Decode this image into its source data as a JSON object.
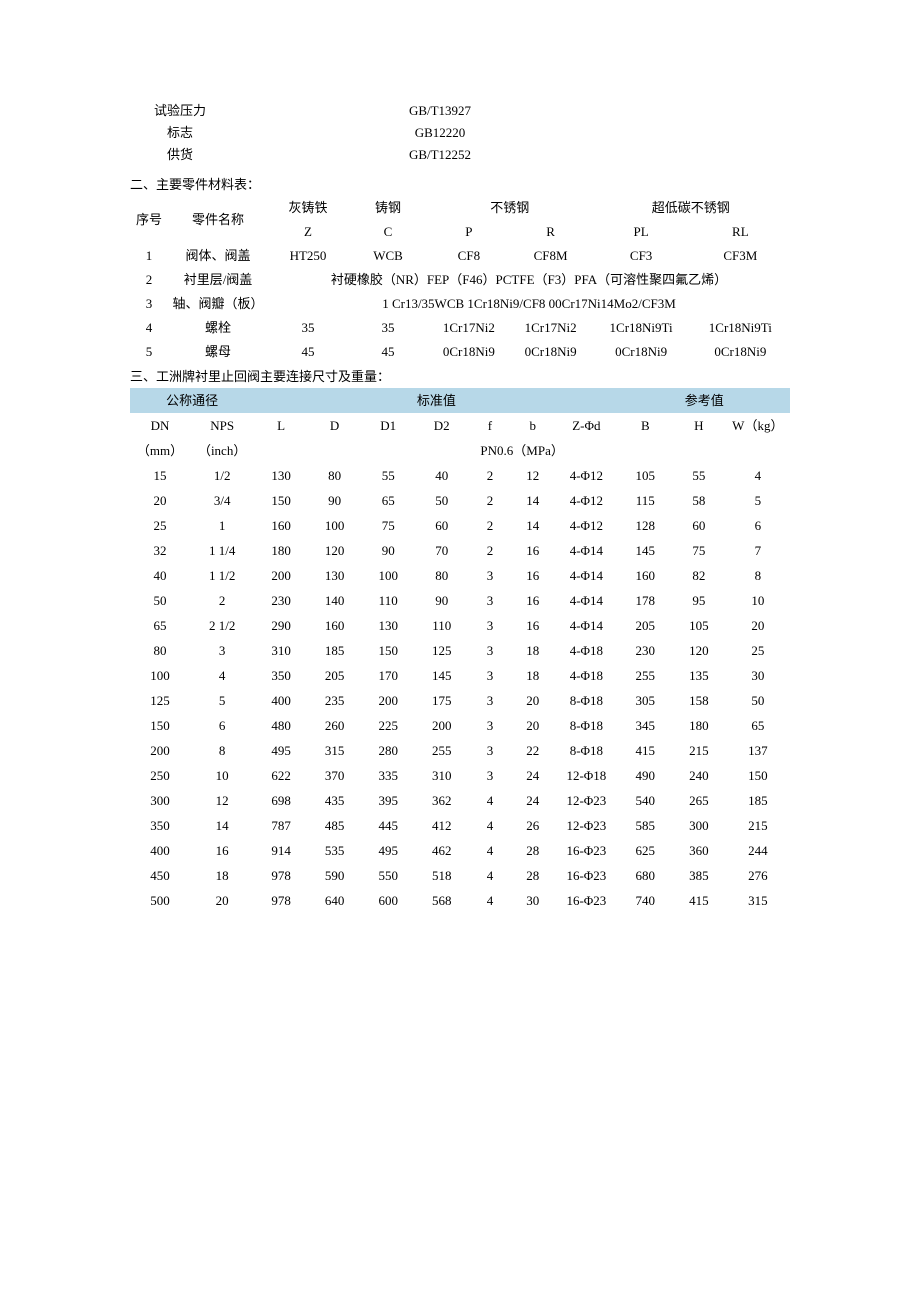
{
  "top_specs": [
    {
      "label": "试验压力",
      "value": "GB/T13927"
    },
    {
      "label": "标志",
      "value": "GB12220"
    },
    {
      "label": "供货",
      "value": "GB/T12252"
    }
  ],
  "section2_title": "二、主要零件材料表：",
  "materials": {
    "header": {
      "idx": "序号",
      "name": "零件名称",
      "grey_iron": "灰铸铁",
      "cast_steel": "铸钢",
      "stainless": "不锈钢",
      "ultra_low_c": "超低碳不锈钢",
      "Z": "Z",
      "C": "C",
      "P": "P",
      "R": "R",
      "PL": "PL",
      "RL": "RL"
    },
    "rows": [
      {
        "idx": "1",
        "name": "阀体、阀盖",
        "Z": "HT250",
        "C": "WCB",
        "P": "CF8",
        "R": "CF8M",
        "PL": "CF3",
        "RL": "CF3M"
      },
      {
        "idx": "2",
        "name": "衬里层/阀盖",
        "span": "衬硬橡胶（NR）FEP（F46）PCTFE（F3）PFA（可溶性聚四氟乙烯）"
      },
      {
        "idx": "3",
        "name": "轴、阀瓣（板）",
        "span": "1 Cr13/35WCB   1Cr18Ni9/CF8   00Cr17Ni14Mo2/CF3M"
      },
      {
        "idx": "4",
        "name": "螺栓",
        "Z": "35",
        "C": "35",
        "P": "1Cr17Ni2",
        "R": "1Cr17Ni2",
        "PL": "1Cr18Ni9Ti",
        "RL": "1Cr18Ni9Ti"
      },
      {
        "idx": "5",
        "name": "螺母",
        "Z": "45",
        "C": "45",
        "P": "0Cr18Ni9",
        "R": "0Cr18Ni9",
        "PL": "0Cr18Ni9",
        "RL": "0Cr18Ni9"
      }
    ]
  },
  "section3_title": "三、工洲牌衬里止回阀主要连接尺寸及重量：",
  "dims": {
    "header": {
      "nominal": "公称通径",
      "standard": "标准值",
      "reference": "参考值",
      "DN": "DN",
      "NPS": "NPS",
      "L": "L",
      "D": "D",
      "D1": "D1",
      "D2": "D2",
      "f": "f",
      "b": "b",
      "Z": "Z-Φd",
      "B": "B",
      "H": "H",
      "W": "W（kg）",
      "dn_unit": "（mm）",
      "nps_unit": "（inch）",
      "pressure": "PN0.6（MPa）"
    },
    "rows": [
      {
        "DN": "15",
        "NPS": "1/2",
        "L": "130",
        "D": "80",
        "D1": "55",
        "D2": "40",
        "f": "2",
        "b": "12",
        "Z": "4-Φ12",
        "B": "105",
        "H": "55",
        "W": "4"
      },
      {
        "DN": "20",
        "NPS": "3/4",
        "L": "150",
        "D": "90",
        "D1": "65",
        "D2": "50",
        "f": "2",
        "b": "14",
        "Z": "4-Φ12",
        "B": "115",
        "H": "58",
        "W": "5"
      },
      {
        "DN": "25",
        "NPS": "1",
        "L": "160",
        "D": "100",
        "D1": "75",
        "D2": "60",
        "f": "2",
        "b": "14",
        "Z": "4-Φ12",
        "B": "128",
        "H": "60",
        "W": "6"
      },
      {
        "DN": "32",
        "NPS": "1 1/4",
        "L": "180",
        "D": "120",
        "D1": "90",
        "D2": "70",
        "f": "2",
        "b": "16",
        "Z": "4-Φ14",
        "B": "145",
        "H": "75",
        "W": "7"
      },
      {
        "DN": "40",
        "NPS": "1 1/2",
        "L": "200",
        "D": "130",
        "D1": "100",
        "D2": "80",
        "f": "3",
        "b": "16",
        "Z": "4-Φ14",
        "B": "160",
        "H": "82",
        "W": "8"
      },
      {
        "DN": "50",
        "NPS": "2",
        "L": "230",
        "D": "140",
        "D1": "110",
        "D2": "90",
        "f": "3",
        "b": "16",
        "Z": "4-Φ14",
        "B": "178",
        "H": "95",
        "W": "10"
      },
      {
        "DN": "65",
        "NPS": "2 1/2",
        "L": "290",
        "D": "160",
        "D1": "130",
        "D2": "110",
        "f": "3",
        "b": "16",
        "Z": "4-Φ14",
        "B": "205",
        "H": "105",
        "W": "20"
      },
      {
        "DN": "80",
        "NPS": "3",
        "L": "310",
        "D": "185",
        "D1": "150",
        "D2": "125",
        "f": "3",
        "b": "18",
        "Z": "4-Φ18",
        "B": "230",
        "H": "120",
        "W": "25"
      },
      {
        "DN": "100",
        "NPS": "4",
        "L": "350",
        "D": "205",
        "D1": "170",
        "D2": "145",
        "f": "3",
        "b": "18",
        "Z": "4-Φ18",
        "B": "255",
        "H": "135",
        "W": "30"
      },
      {
        "DN": "125",
        "NPS": "5",
        "L": "400",
        "D": "235",
        "D1": "200",
        "D2": "175",
        "f": "3",
        "b": "20",
        "Z": "8-Φ18",
        "B": "305",
        "H": "158",
        "W": "50"
      },
      {
        "DN": "150",
        "NPS": "6",
        "L": "480",
        "D": "260",
        "D1": "225",
        "D2": "200",
        "f": "3",
        "b": "20",
        "Z": "8-Φ18",
        "B": "345",
        "H": "180",
        "W": "65"
      },
      {
        "DN": "200",
        "NPS": "8",
        "L": "495",
        "D": "315",
        "D1": "280",
        "D2": "255",
        "f": "3",
        "b": "22",
        "Z": "8-Φ18",
        "B": "415",
        "H": "215",
        "W": "137"
      },
      {
        "DN": "250",
        "NPS": "10",
        "L": "622",
        "D": "370",
        "D1": "335",
        "D2": "310",
        "f": "3",
        "b": "24",
        "Z": "12-Φ18",
        "B": "490",
        "H": "240",
        "W": "150"
      },
      {
        "DN": "300",
        "NPS": "12",
        "L": "698",
        "D": "435",
        "D1": "395",
        "D2": "362",
        "f": "4",
        "b": "24",
        "Z": "12-Φ23",
        "B": "540",
        "H": "265",
        "W": "185"
      },
      {
        "DN": "350",
        "NPS": "14",
        "L": "787",
        "D": "485",
        "D1": "445",
        "D2": "412",
        "f": "4",
        "b": "26",
        "Z": "12-Φ23",
        "B": "585",
        "H": "300",
        "W": "215"
      },
      {
        "DN": "400",
        "NPS": "16",
        "L": "914",
        "D": "535",
        "D1": "495",
        "D2": "462",
        "f": "4",
        "b": "28",
        "Z": "16-Φ23",
        "B": "625",
        "H": "360",
        "W": "244"
      },
      {
        "DN": "450",
        "NPS": "18",
        "L": "978",
        "D": "590",
        "D1": "550",
        "D2": "518",
        "f": "4",
        "b": "28",
        "Z": "16-Φ23",
        "B": "680",
        "H": "385",
        "W": "276"
      },
      {
        "DN": "500",
        "NPS": "20",
        "L": "978",
        "D": "640",
        "D1": "600",
        "D2": "568",
        "f": "4",
        "b": "30",
        "Z": "16-Φ23",
        "B": "740",
        "H": "415",
        "W": "315"
      }
    ]
  },
  "colors": {
    "header_bg": "#b7d8e8",
    "text": "#000000"
  }
}
